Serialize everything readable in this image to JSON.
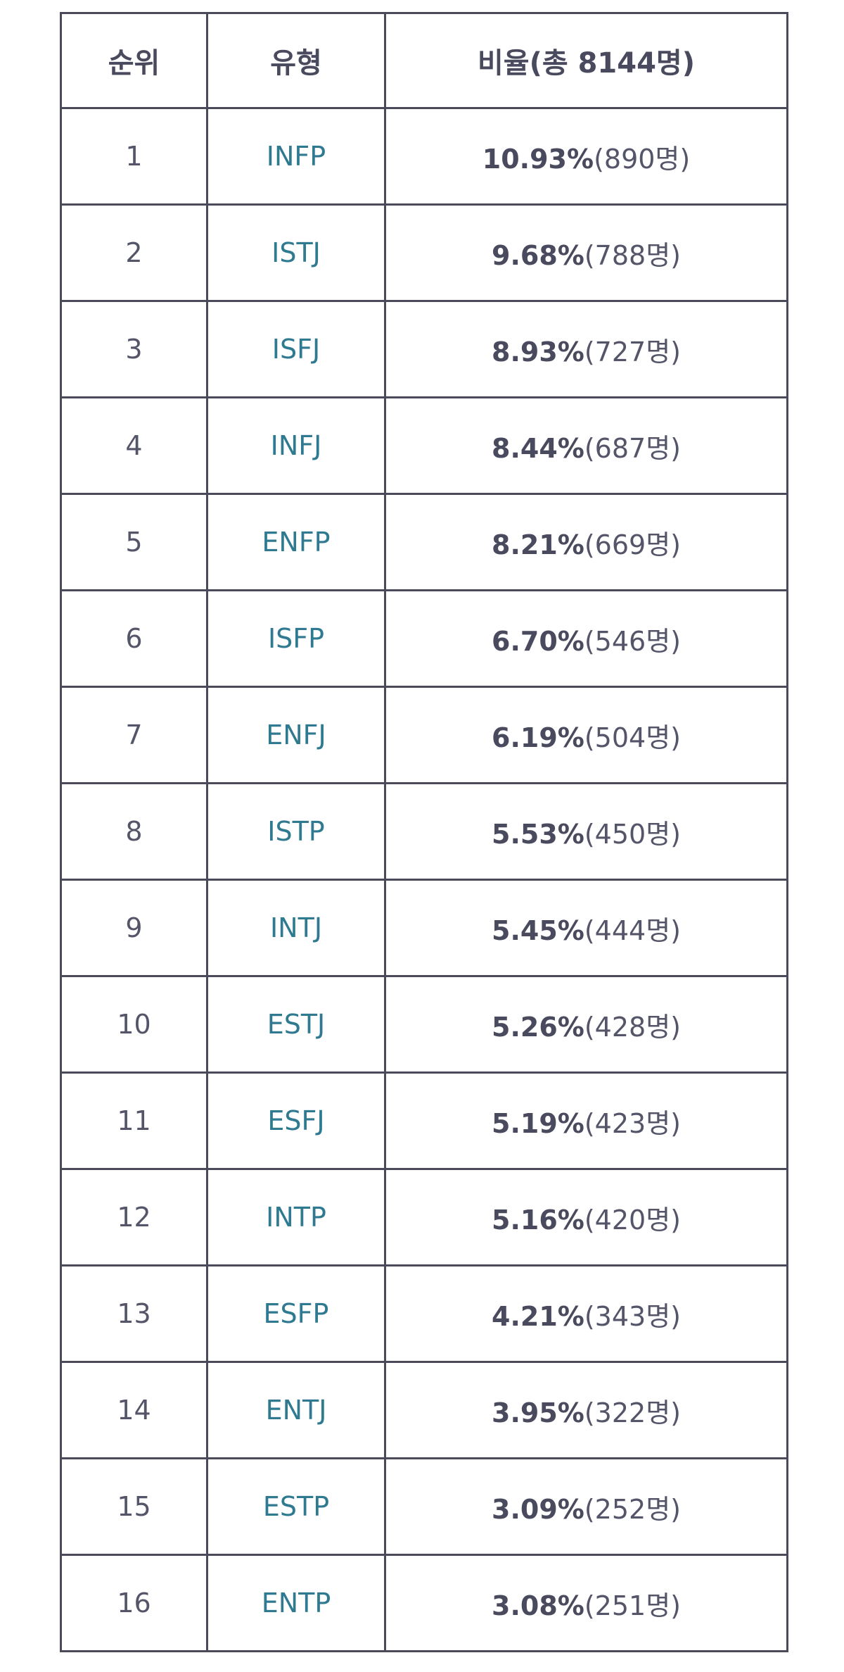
{
  "table": {
    "headers": [
      "순위",
      "유형",
      "비율(총 8144명)"
    ],
    "rows": [
      {
        "rank": "1",
        "type": "INFP",
        "pct": "10.93%",
        "count": "(890명)"
      },
      {
        "rank": "2",
        "type": "ISTJ",
        "pct": "9.68%",
        "count": "(788명)"
      },
      {
        "rank": "3",
        "type": "ISFJ",
        "pct": "8.93%",
        "count": "(727명)"
      },
      {
        "rank": "4",
        "type": "INFJ",
        "pct": "8.44%",
        "count": "(687명)"
      },
      {
        "rank": "5",
        "type": "ENFP",
        "pct": "8.21%",
        "count": "(669명)"
      },
      {
        "rank": "6",
        "type": "ISFP",
        "pct": "6.70%",
        "count": "(546명)"
      },
      {
        "rank": "7",
        "type": "ENFJ",
        "pct": "6.19%",
        "count": "(504명)"
      },
      {
        "rank": "8",
        "type": "ISTP",
        "pct": "5.53%",
        "count": "(450명)"
      },
      {
        "rank": "9",
        "type": "INTJ",
        "pct": "5.45%",
        "count": "(444명)"
      },
      {
        "rank": "10",
        "type": "ESTJ",
        "pct": "5.26%",
        "count": "(428명)"
      },
      {
        "rank": "11",
        "type": "ESFJ",
        "pct": "5.19%",
        "count": "(423명)"
      },
      {
        "rank": "12",
        "type": "INTP",
        "pct": "5.16%",
        "count": "(420명)"
      },
      {
        "rank": "13",
        "type": "ESFP",
        "pct": "4.21%",
        "count": "(343명)"
      },
      {
        "rank": "14",
        "type": "ENTJ",
        "pct": "3.95%",
        "count": "(322명)"
      },
      {
        "rank": "15",
        "type": "ESTP",
        "pct": "3.09%",
        "count": "(252명)"
      },
      {
        "rank": "16",
        "type": "ENTP",
        "pct": "3.08%",
        "count": "(251명)"
      }
    ]
  },
  "colors": {
    "type_text": "#2f7a90",
    "border": "#4a4a5a",
    "text": "#4a4a5e"
  }
}
